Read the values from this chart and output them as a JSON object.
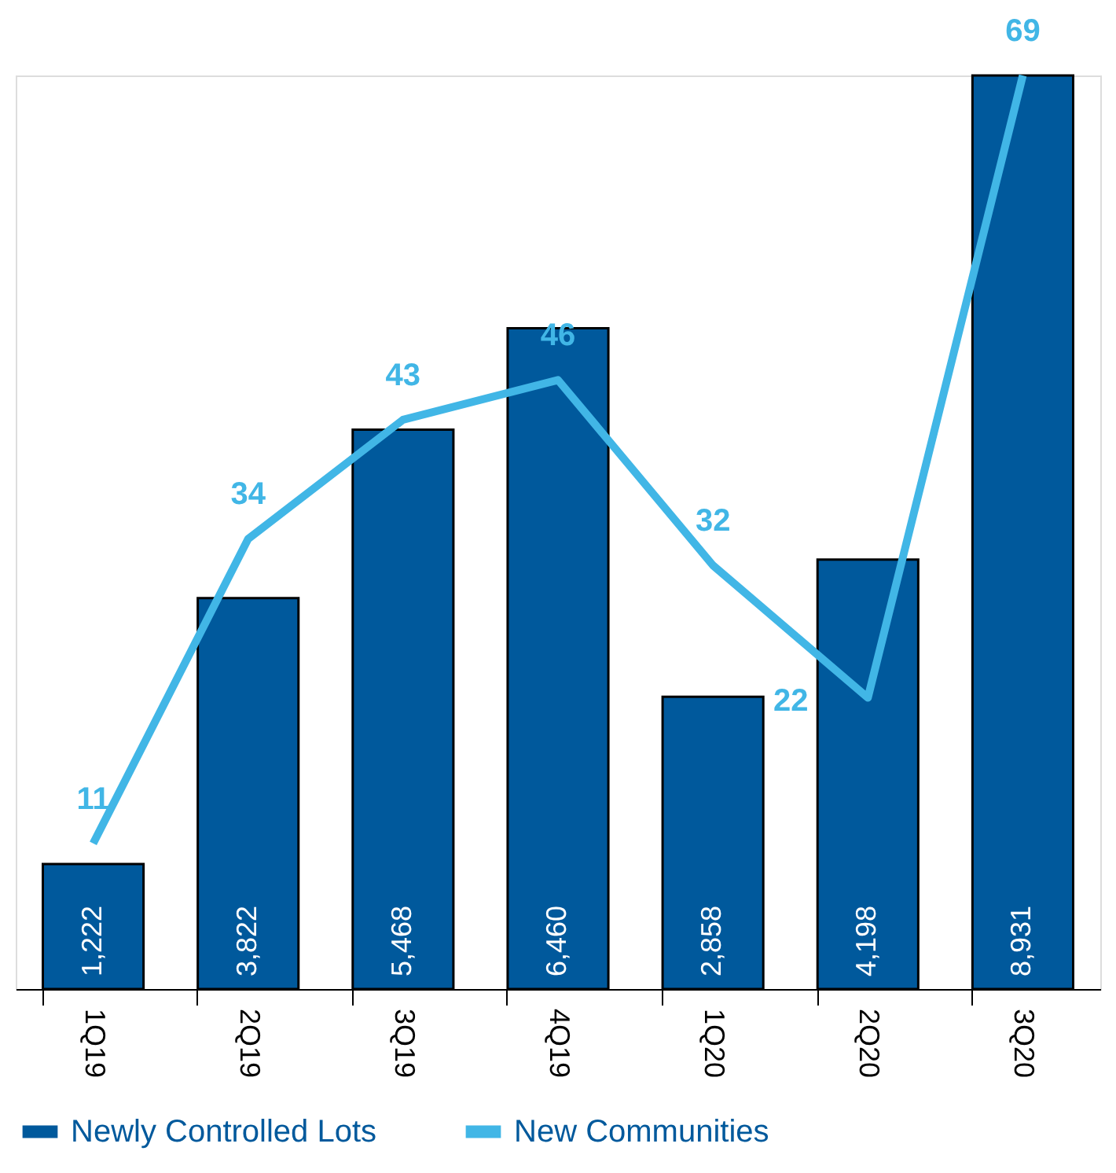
{
  "chart_data": {
    "type": "bar",
    "categories": [
      "1Q19",
      "2Q19",
      "3Q19",
      "4Q19",
      "1Q20",
      "2Q20",
      "3Q20"
    ],
    "series": [
      {
        "name": "Newly Controlled Lots",
        "color": "#00599c",
        "values": [
          1222,
          3822,
          5468,
          6460,
          2858,
          4198,
          8931
        ],
        "value_labels": [
          "1,222",
          "3,822",
          "5,468",
          "6,460",
          "2,858",
          "4,198",
          "8,931"
        ]
      },
      {
        "name": "New Communities",
        "type": "line",
        "axis": "y2",
        "color": "#41b6e6",
        "values": [
          11,
          34,
          43,
          46,
          32,
          22,
          69
        ]
      }
    ],
    "data_labels": true,
    "legend": "bottom",
    "grid": false,
    "tick_labels": "x",
    "line_style": "solid",
    "marker": "none"
  }
}
